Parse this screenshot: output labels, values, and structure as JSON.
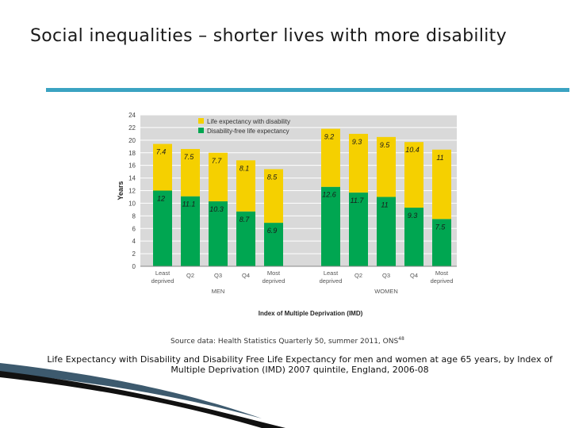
{
  "slide": {
    "title": "Social inequalities – shorter lives with more disability",
    "source_text": "Source data: Health Statistics Quarterly 50, summer 2011, ONS",
    "source_ref": "48",
    "caption": "Life Expectancy with Disability and Disability Free Life Expectancy for men and women at age 65 years, by Index of Multiple Deprivation (IMD) 2007 quintile, England, 2006-08"
  },
  "colors": {
    "accent_rule": "#3ba3c2",
    "yellow": "#f5d000",
    "green": "#00a651",
    "plot_bg": "#d9d9d9"
  },
  "chart_data": {
    "type": "bar",
    "stacked": true,
    "xlabel": "Index of Multiple Deprivation (IMD)",
    "ylabel": "Years",
    "ylim": [
      0,
      24
    ],
    "yticks": [
      "0",
      "2",
      "4",
      "6",
      "8",
      "10",
      "12",
      "14",
      "16",
      "18",
      "20",
      "22",
      "24"
    ],
    "groups": [
      "MEN",
      "WOMEN"
    ],
    "categories": [
      "Least deprived",
      "Q2",
      "Q3",
      "Q4",
      "Most deprived",
      "Least deprived",
      "Q2",
      "Q3",
      "Q4",
      "Most deprived"
    ],
    "series": [
      {
        "name": "Disability-free life expectancy",
        "values": [
          12,
          11.1,
          10.3,
          8.7,
          6.9,
          12.6,
          11.7,
          11,
          9.3,
          7.5
        ]
      },
      {
        "name": "Life expectancy with disability",
        "values": [
          7.4,
          7.5,
          7.7,
          8.1,
          8.5,
          9.2,
          9.3,
          9.5,
          10.4,
          11
        ]
      }
    ],
    "green_labels": [
      "12",
      "11.1",
      "10.3",
      "8.7",
      "6.9",
      "12.6",
      "11.7",
      "11",
      "9.3",
      "7.5"
    ],
    "yellow_labels": [
      "7.4",
      "7.5",
      "7.7",
      "8.1",
      "8.5",
      "9.2",
      "9.3",
      "9.5",
      "10.4",
      "11"
    ],
    "legend": [
      "Life expectancy with disability",
      "Disability-free life expectancy"
    ],
    "legend_position": "top-left"
  }
}
